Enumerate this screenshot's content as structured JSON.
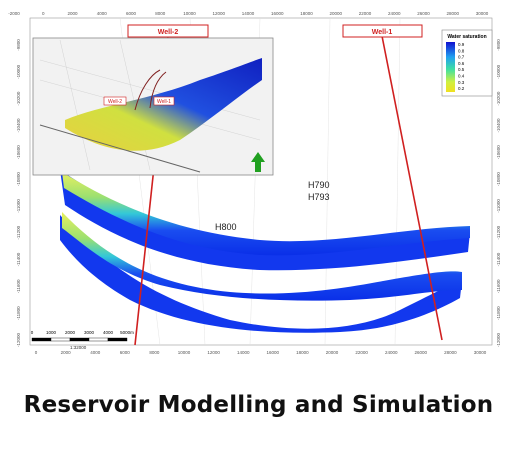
{
  "figure": {
    "wells": [
      "Well-2",
      "Well-1"
    ],
    "horizons": [
      "H800",
      "H790",
      "H793"
    ],
    "x_ticks_top": [
      "-2000",
      "0",
      "2000",
      "4000",
      "6000",
      "8000",
      "10000",
      "12000",
      "14000",
      "16000",
      "18000",
      "20000",
      "22000",
      "24000",
      "26000",
      "28000",
      "30000"
    ],
    "x_ticks_bottom": [
      "0",
      "2000",
      "4000",
      "6000",
      "8000",
      "10000",
      "12000",
      "14000",
      "16000",
      "18000",
      "20000",
      "22000",
      "24000",
      "26000",
      "28000",
      "30000"
    ],
    "y_ticks": [
      "-9800",
      "-10000",
      "-10200",
      "-10400",
      "-10600",
      "-10800",
      "-11000",
      "-11200",
      "-11400",
      "-11600",
      "-11800",
      "-12000"
    ],
    "legend": {
      "title": "Water saturation",
      "values": [
        "0.9",
        "0.8",
        "0.7",
        "0.6",
        "0.5",
        "0.4",
        "0.3",
        "0.2"
      ]
    },
    "scale_bar": {
      "labels": [
        "0",
        "1000",
        "2000",
        "3000",
        "4000",
        "5000m"
      ],
      "ratio": "1:32000"
    },
    "inset_wells": [
      "Well-2",
      "Well-1"
    ]
  },
  "caption": "Reservoir Modelling and Simulation"
}
